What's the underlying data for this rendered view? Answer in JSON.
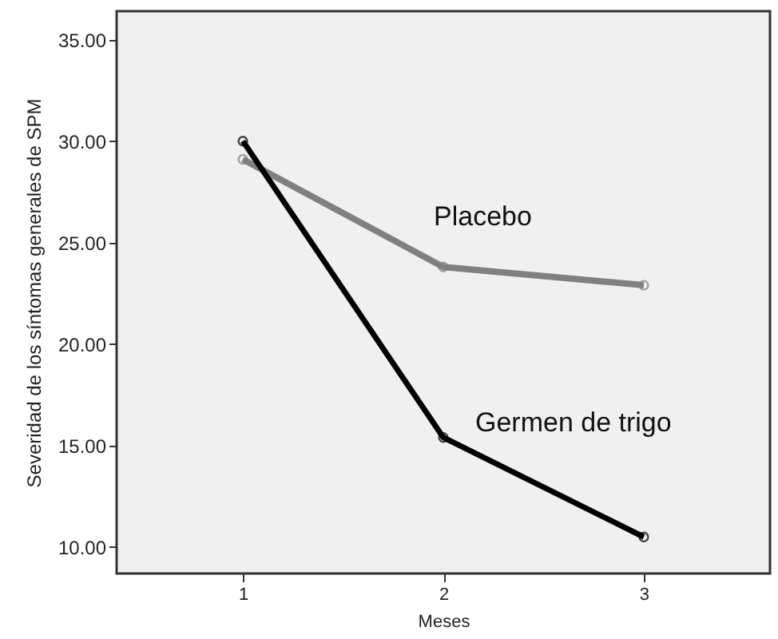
{
  "chart_data": {
    "type": "line",
    "xlabel": "Meses",
    "ylabel": "Severidad de los síntomas generales de SPM",
    "categories": [
      "1",
      "2",
      "3"
    ],
    "series": [
      {
        "name": "Placebo",
        "color": "#808080",
        "values": [
          29.1,
          23.8,
          22.9
        ]
      },
      {
        "name": "Germen de trigo",
        "color": "#000000",
        "values": [
          30.0,
          15.4,
          10.5
        ]
      }
    ],
    "ylim": [
      8.7,
      36.4
    ],
    "yticks": [
      {
        "value": 10,
        "label": "10.00"
      },
      {
        "value": 15,
        "label": "15.00"
      },
      {
        "value": 20,
        "label": "20.00"
      },
      {
        "value": 25,
        "label": "25.00"
      },
      {
        "value": 30,
        "label": "30.00"
      },
      {
        "value": 35,
        "label": "35.00"
      }
    ],
    "grid": false,
    "marker": "circle",
    "line_style": "solid"
  }
}
